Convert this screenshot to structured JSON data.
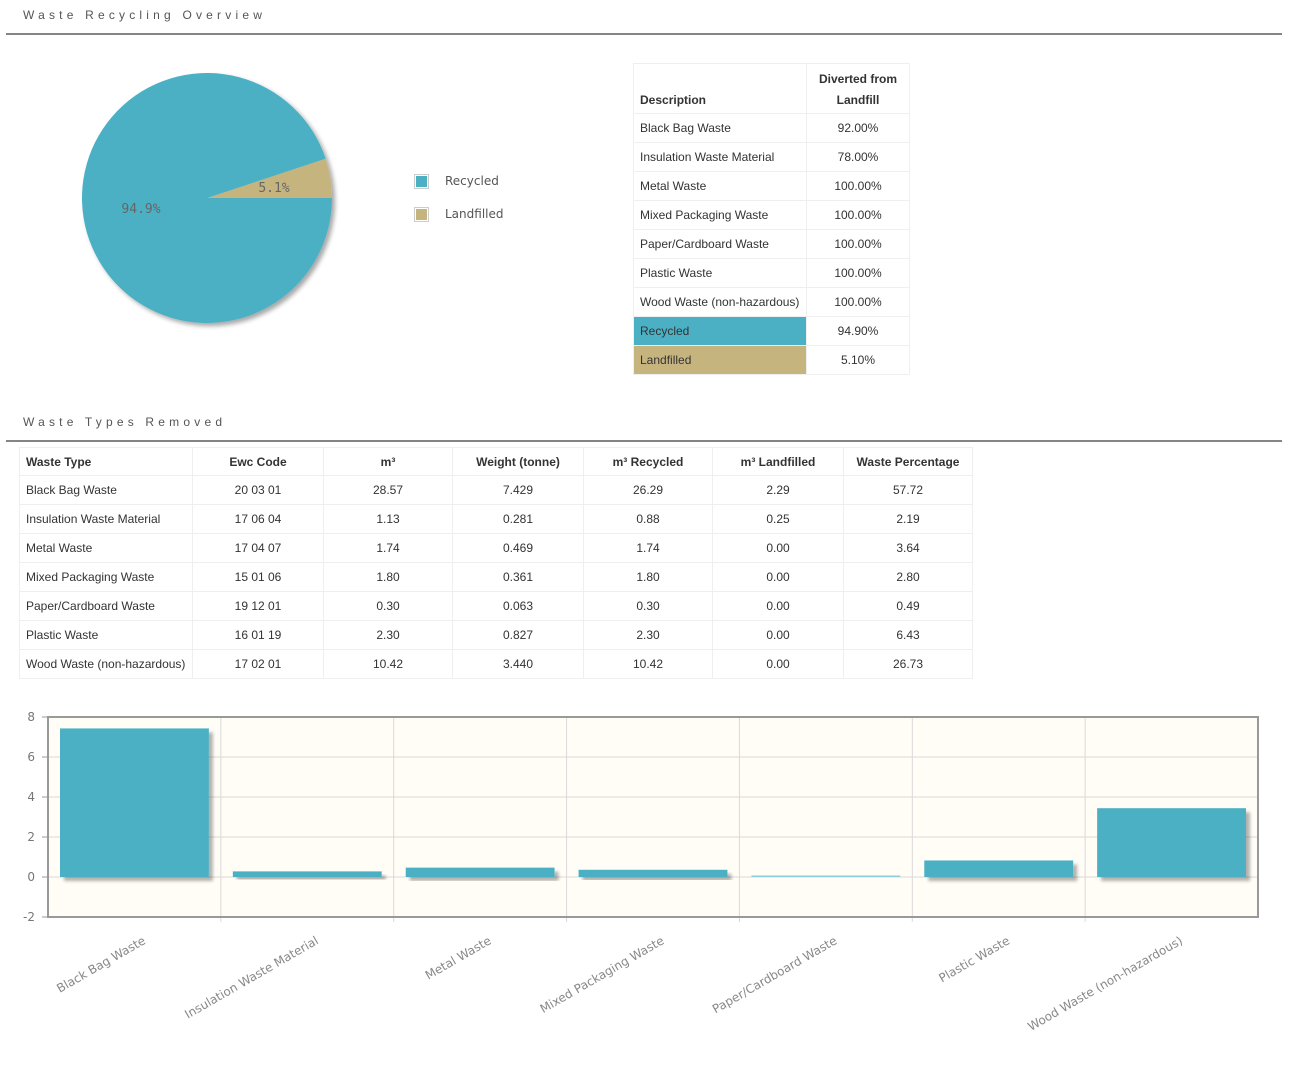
{
  "sections": {
    "overview_title": "Waste Recycling Overview",
    "types_title": "Waste Types Removed"
  },
  "colors": {
    "recycled": "#4bb0c4",
    "landfilled": "#c6b47f",
    "plot_bg": "#fffdf6"
  },
  "legend": [
    {
      "label": "Recycled",
      "color": "#4bb0c4"
    },
    {
      "label": "Landfilled",
      "color": "#c6b47f"
    }
  ],
  "summary_table": {
    "headers": {
      "description": "Description",
      "diverted_line1": "Diverted from",
      "diverted_line2": "Landfill"
    },
    "rows": [
      {
        "description": "Black Bag Waste",
        "diverted": "92.00%"
      },
      {
        "description": "Insulation Waste Material",
        "diverted": "78.00%"
      },
      {
        "description": "Metal Waste",
        "diverted": "100.00%"
      },
      {
        "description": "Mixed Packaging Waste",
        "diverted": "100.00%"
      },
      {
        "description": "Paper/Cardboard Waste",
        "diverted": "100.00%"
      },
      {
        "description": "Plastic Waste",
        "diverted": "100.00%"
      },
      {
        "description": "Wood Waste (non-hazardous)",
        "diverted": "100.00%"
      }
    ],
    "totals": [
      {
        "description": "Recycled",
        "value": "94.90%"
      },
      {
        "description": "Landfilled",
        "value": "5.10%"
      }
    ]
  },
  "waste_types_table": {
    "headers": [
      "Waste Type",
      "Ewc Code",
      "m³",
      "Weight (tonne)",
      "m³ Recycled",
      "m³ Landfilled",
      "Waste Percentage"
    ],
    "rows": [
      [
        "Black Bag Waste",
        "20 03 01",
        "28.57",
        "7.429",
        "26.29",
        "2.29",
        "57.72"
      ],
      [
        "Insulation Waste Material",
        "17 06 04",
        "1.13",
        "0.281",
        "0.88",
        "0.25",
        "2.19"
      ],
      [
        "Metal Waste",
        "17 04 07",
        "1.74",
        "0.469",
        "1.74",
        "0.00",
        "3.64"
      ],
      [
        "Mixed Packaging Waste",
        "15 01 06",
        "1.80",
        "0.361",
        "1.80",
        "0.00",
        "2.80"
      ],
      [
        "Paper/Cardboard Waste",
        "19 12 01",
        "0.30",
        "0.063",
        "0.30",
        "0.00",
        "0.49"
      ],
      [
        "Plastic Waste",
        "16 01 19",
        "2.30",
        "0.827",
        "2.30",
        "0.00",
        "6.43"
      ],
      [
        "Wood Waste (non-hazardous)",
        "17 02 01",
        "10.42",
        "3.440",
        "10.42",
        "0.00",
        "26.73"
      ]
    ]
  },
  "chart_data": [
    {
      "type": "pie",
      "title": "",
      "slices": [
        {
          "label": "Recycled",
          "value": 94.9,
          "display": "94.9%",
          "color": "#4bb0c4"
        },
        {
          "label": "Landfilled",
          "value": 5.1,
          "display": "5.1%",
          "color": "#c6b47f"
        }
      ],
      "legend_position": "right"
    },
    {
      "type": "bar",
      "title": "",
      "xlabel": "",
      "ylabel": "",
      "categories": [
        "Black Bag Waste",
        "Insulation Waste Material",
        "Metal Waste",
        "Mixed Packaging Waste",
        "Paper/Cardboard Waste",
        "Plastic Waste",
        "Wood Waste (non-hazardous)"
      ],
      "values": [
        7.429,
        0.281,
        0.469,
        0.361,
        0.063,
        0.827,
        3.44
      ],
      "ylim": [
        -2,
        8
      ],
      "yticks": [
        "-2",
        "0",
        "2",
        "4",
        "6",
        "8"
      ],
      "grid": true,
      "color": "#4bb0c4"
    }
  ]
}
